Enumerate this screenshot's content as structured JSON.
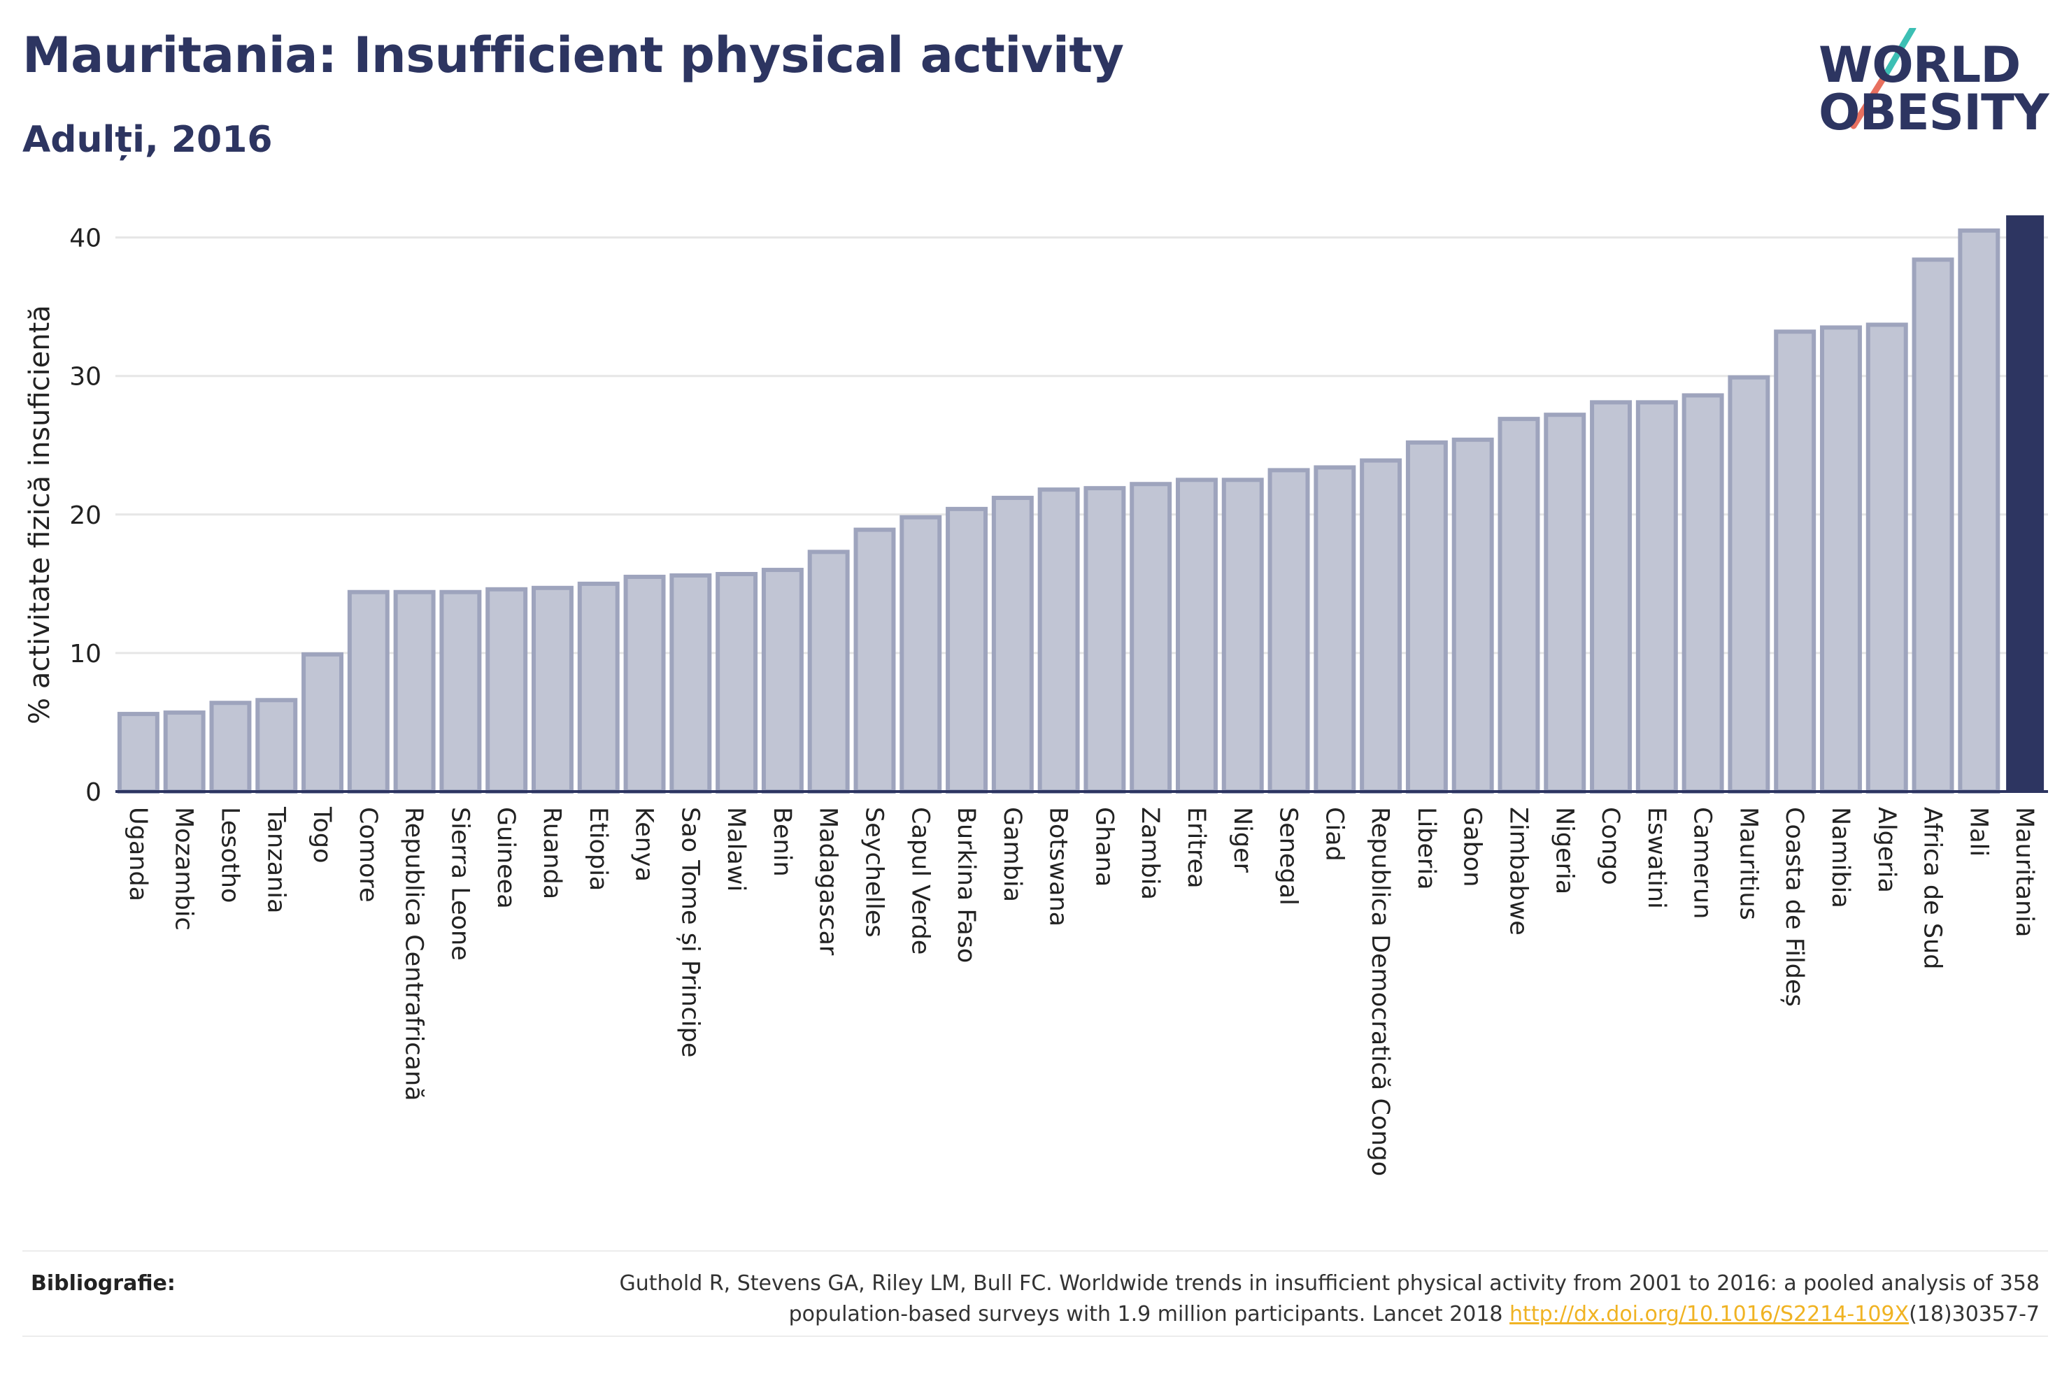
{
  "header": {
    "title": "Mauritania: Insufficient physical activity",
    "subtitle": "Adulți, 2016"
  },
  "logo": {
    "line1": "WORLD",
    "line2": "OBESITY",
    "colors": {
      "text": "#2d3561",
      "slash_teal": "#3cbfb4",
      "slash_coral": "#e8705f"
    }
  },
  "colors": {
    "bar_fill": "#c1c5d4",
    "bar_stroke": "#9ea4bd",
    "highlight": "#2d3561",
    "grid": "#e6e6e6",
    "axis": "#2d3561"
  },
  "chart_data": {
    "type": "bar",
    "title": "Mauritania: Insufficient physical activity",
    "subtitle": "Adulți, 2016",
    "xlabel": "",
    "ylabel": "% activitate fizică insuficientă",
    "ylim": [
      0,
      42
    ],
    "yticks": [
      0,
      10,
      20,
      30,
      40
    ],
    "grid": true,
    "highlight_category": "Mauritania",
    "categories": [
      "Uganda",
      "Mozambic",
      "Lesotho",
      "Tanzania",
      "Togo",
      "Comore",
      "Republica Centrafricană",
      "Sierra Leone",
      "Guineea",
      "Ruanda",
      "Etiopia",
      "Kenya",
      "Sao Tome și Principe",
      "Malawi",
      "Benin",
      "Madagascar",
      "Seychelles",
      "Capul Verde",
      "Burkina Faso",
      "Gambia",
      "Botswana",
      "Ghana",
      "Zambia",
      "Eritrea",
      "Niger",
      "Senegal",
      "Ciad",
      "Republica Democratică Congo",
      "Liberia",
      "Gabon",
      "Zimbabwe",
      "Nigeria",
      "Congo",
      "Eswatini",
      "Camerun",
      "Mauritius",
      "Coasta de Fildeș",
      "Namibia",
      "Algeria",
      "Africa de Sud",
      "Mali",
      "Mauritania"
    ],
    "values": [
      5.6,
      5.7,
      6.4,
      6.6,
      9.9,
      14.4,
      14.4,
      14.4,
      14.6,
      14.7,
      15.0,
      15.5,
      15.6,
      15.7,
      16.0,
      17.3,
      18.9,
      19.8,
      20.4,
      21.2,
      21.8,
      21.9,
      22.2,
      22.5,
      22.5,
      23.2,
      23.4,
      23.9,
      25.2,
      25.4,
      26.9,
      27.2,
      28.1,
      28.1,
      28.6,
      29.9,
      33.2,
      33.5,
      33.7,
      38.4,
      40.5,
      41.6
    ]
  },
  "bibliography": {
    "label": "Bibliografie:",
    "line1": "Guthold R, Stevens GA, Riley LM, Bull FC. Worldwide trends in insufficient physical activity from 2001 to 2016: a pooled analysis of 358",
    "line2_before": "population-based surveys with 1.9 million participants. Lancet 2018 ",
    "link_text": "http://dx.doi.org/10.1016/S2214-109X",
    "line2_after": "(18)30357-7"
  }
}
